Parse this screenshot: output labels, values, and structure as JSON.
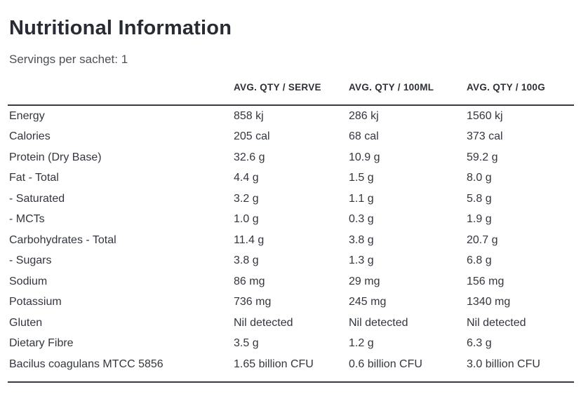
{
  "page": {
    "title": "Nutritional Information",
    "servings_line": "Servings per sachet: 1"
  },
  "table": {
    "columns": {
      "nutrient": "",
      "serve": "AVG. QTY / SERVE",
      "per_100ml": "AVG. QTY / 100ML",
      "per_100g": "AVG. QTY / 100G"
    },
    "rows": [
      {
        "label": "Energy",
        "serve": "858 kj",
        "per_100ml": "286 kj",
        "per_100g": "1560 kj"
      },
      {
        "label": "Calories",
        "serve": "205 cal",
        "per_100ml": "68 cal",
        "per_100g": "373 cal"
      },
      {
        "label": "Protein (Dry Base)",
        "serve": "32.6 g",
        "per_100ml": "10.9 g",
        "per_100g": "59.2 g"
      },
      {
        "label": "Fat - Total",
        "serve": "4.4 g",
        "per_100ml": "1.5 g",
        "per_100g": "8.0 g"
      },
      {
        "label": "- Saturated",
        "serve": "3.2 g",
        "per_100ml": "1.1 g",
        "per_100g": "5.8 g"
      },
      {
        "label": "- MCTs",
        "serve": "1.0 g",
        "per_100ml": "0.3 g",
        "per_100g": "1.9 g"
      },
      {
        "label": "Carbohydrates - Total",
        "serve": "11.4 g",
        "per_100ml": "3.8 g",
        "per_100g": "20.7 g"
      },
      {
        "label": "- Sugars",
        "serve": "3.8 g",
        "per_100ml": "1.3 g",
        "per_100g": "6.8 g"
      },
      {
        "label": "Sodium",
        "serve": "86 mg",
        "per_100ml": "29 mg",
        "per_100g": "156 mg"
      },
      {
        "label": "Potassium",
        "serve": "736 mg",
        "per_100ml": "245 mg",
        "per_100g": "1340 mg"
      },
      {
        "label": "Gluten",
        "serve": "Nil detected",
        "per_100ml": "Nil detected",
        "per_100g": "Nil detected"
      },
      {
        "label": "Dietary Fibre",
        "serve": "3.5 g",
        "per_100ml": "1.2 g",
        "per_100g": "6.3 g"
      },
      {
        "label": "Bacilus coagulans MTCC 5856",
        "serve": "1.65 billion CFU",
        "per_100ml": "0.6 billion CFU",
        "per_100g": "3.0 billion CFU"
      }
    ]
  },
  "colors": {
    "background": "#ffffff",
    "title_text": "#282b33",
    "subtitle_text": "#4c4f58",
    "body_text": "#33363e",
    "rule": "#383b42"
  }
}
